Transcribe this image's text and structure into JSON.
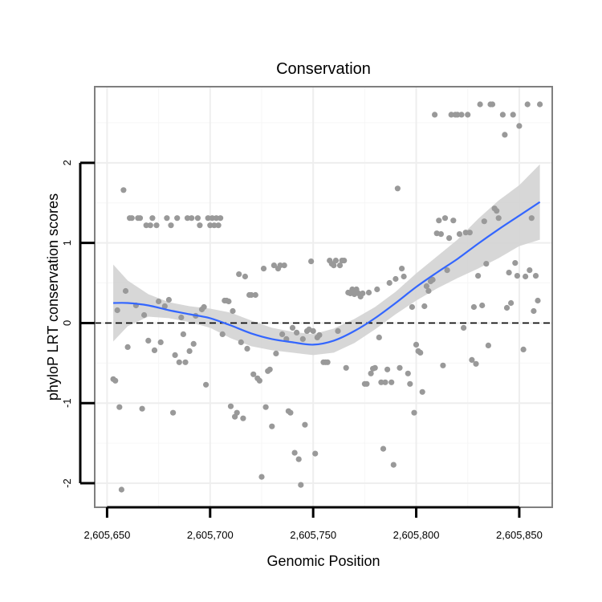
{
  "chart_data": {
    "type": "scatter",
    "title": "Conservation",
    "xlabel": "Genomic Position",
    "ylabel": "phyloP LRT conservation scores",
    "xlim": [
      2605644,
      2605866
    ],
    "ylim": [
      -2.3,
      2.95
    ],
    "x_ticks": [
      2605650,
      2605700,
      2605750,
      2605800,
      2605850
    ],
    "x_tick_labels": [
      "2,605,650",
      "2,605,700",
      "2,605,750",
      "2,605,800",
      "2,605,850"
    ],
    "y_ticks": [
      -2,
      -1,
      0,
      1,
      2
    ],
    "y_tick_labels": [
      "-2",
      "-1",
      "0",
      "1",
      "2"
    ],
    "grid": true,
    "reference_line": {
      "y": 0,
      "style": "dashed",
      "color": "#000000"
    },
    "colors": {
      "points": "#999999",
      "smooth_line": "#3366ff",
      "confidence_band": "#d3d3d3",
      "panel_border": "#7f7f7f"
    },
    "points": [
      [
        2605653,
        -0.7
      ],
      [
        2605654,
        -0.72
      ],
      [
        2605655,
        0.16
      ],
      [
        2605656,
        -1.05
      ],
      [
        2605657,
        -2.08
      ],
      [
        2605658,
        1.66
      ],
      [
        2605659,
        0.4
      ],
      [
        2605660,
        -0.3
      ],
      [
        2605661,
        1.31
      ],
      [
        2605662,
        1.31
      ],
      [
        2605664,
        0.22
      ],
      [
        2605665,
        1.31
      ],
      [
        2605666,
        1.31
      ],
      [
        2605667,
        -1.07
      ],
      [
        2605668,
        0.1
      ],
      [
        2605669,
        1.22
      ],
      [
        2605670,
        -0.22
      ],
      [
        2605671,
        1.22
      ],
      [
        2605672,
        1.31
      ],
      [
        2605673,
        -0.34
      ],
      [
        2605674,
        1.22
      ],
      [
        2605675,
        0.27
      ],
      [
        2605676,
        -0.24
      ],
      [
        2605678,
        0.21
      ],
      [
        2605679,
        1.31
      ],
      [
        2605680,
        0.29
      ],
      [
        2605681,
        1.22
      ],
      [
        2605682,
        -1.12
      ],
      [
        2605683,
        -0.4
      ],
      [
        2605684,
        1.31
      ],
      [
        2605685,
        -0.49
      ],
      [
        2605686,
        0.07
      ],
      [
        2605687,
        -0.14
      ],
      [
        2605688,
        -0.49
      ],
      [
        2605689,
        1.31
      ],
      [
        2605690,
        -0.35
      ],
      [
        2605691,
        1.31
      ],
      [
        2605692,
        -0.26
      ],
      [
        2605693,
        0.09
      ],
      [
        2605694,
        1.31
      ],
      [
        2605695,
        1.22
      ],
      [
        2605696,
        0.17
      ],
      [
        2605697,
        0.2
      ],
      [
        2605698,
        -0.77
      ],
      [
        2605699,
        1.31
      ],
      [
        2605700,
        1.22
      ],
      [
        2605701,
        1.31
      ],
      [
        2605702,
        1.22
      ],
      [
        2605703,
        1.31
      ],
      [
        2605704,
        1.22
      ],
      [
        2605705,
        1.31
      ],
      [
        2605706,
        -0.14
      ],
      [
        2605707,
        0.28
      ],
      [
        2605708,
        0.28
      ],
      [
        2605709,
        0.27
      ],
      [
        2605710,
        -1.04
      ],
      [
        2605711,
        0.15
      ],
      [
        2605712,
        -1.17
      ],
      [
        2605713,
        -1.12
      ],
      [
        2605714,
        0.61
      ],
      [
        2605715,
        -0.24
      ],
      [
        2605716,
        -1.19
      ],
      [
        2605717,
        0.58
      ],
      [
        2605718,
        -0.32
      ],
      [
        2605719,
        0.35
      ],
      [
        2605720,
        0.35
      ],
      [
        2605721,
        -0.64
      ],
      [
        2605722,
        0.35
      ],
      [
        2605723,
        -0.69
      ],
      [
        2605724,
        -0.72
      ],
      [
        2605725,
        -1.92
      ],
      [
        2605726,
        0.68
      ],
      [
        2605727,
        -1.05
      ],
      [
        2605728,
        -0.6
      ],
      [
        2605729,
        -0.58
      ],
      [
        2605730,
        -1.29
      ],
      [
        2605731,
        0.72
      ],
      [
        2605732,
        -0.38
      ],
      [
        2605733,
        0.68
      ],
      [
        2605734,
        0.72
      ],
      [
        2605735,
        -0.14
      ],
      [
        2605736,
        0.72
      ],
      [
        2605737,
        -0.2
      ],
      [
        2605738,
        -1.1
      ],
      [
        2605739,
        -1.12
      ],
      [
        2605740,
        -0.06
      ],
      [
        2605741,
        -1.62
      ],
      [
        2605742,
        -0.12
      ],
      [
        2605743,
        -1.7
      ],
      [
        2605744,
        -2.02
      ],
      [
        2605745,
        -0.2
      ],
      [
        2605746,
        -1.27
      ],
      [
        2605747,
        -0.1
      ],
      [
        2605748,
        -0.08
      ],
      [
        2605749,
        0.77
      ],
      [
        2605750,
        -0.1
      ],
      [
        2605751,
        -1.63
      ],
      [
        2605752,
        -0.18
      ],
      [
        2605753,
        -0.15
      ],
      [
        2605755,
        -0.49
      ],
      [
        2605756,
        -0.49
      ],
      [
        2605757,
        -0.49
      ],
      [
        2605758,
        0.78
      ],
      [
        2605759,
        0.74
      ],
      [
        2605760,
        0.72
      ],
      [
        2605761,
        0.78
      ],
      [
        2605762,
        -0.1
      ],
      [
        2605763,
        0.72
      ],
      [
        2605764,
        0.78
      ],
      [
        2605765,
        0.78
      ],
      [
        2605766,
        -0.56
      ],
      [
        2605767,
        0.38
      ],
      [
        2605768,
        0.37
      ],
      [
        2605769,
        0.42
      ],
      [
        2605770,
        0.36
      ],
      [
        2605771,
        0.42
      ],
      [
        2605772,
        0.37
      ],
      [
        2605773,
        0.33
      ],
      [
        2605774,
        0.37
      ],
      [
        2605775,
        -0.76
      ],
      [
        2605776,
        -0.76
      ],
      [
        2605777,
        0.38
      ],
      [
        2605778,
        -0.63
      ],
      [
        2605779,
        -0.57
      ],
      [
        2605780,
        -0.56
      ],
      [
        2605781,
        0.42
      ],
      [
        2605782,
        -0.18
      ],
      [
        2605783,
        -0.74
      ],
      [
        2605784,
        -1.57
      ],
      [
        2605785,
        -0.74
      ],
      [
        2605786,
        -0.58
      ],
      [
        2605787,
        0.5
      ],
      [
        2605788,
        -0.74
      ],
      [
        2605789,
        -1.77
      ],
      [
        2605790,
        0.55
      ],
      [
        2605791,
        1.68
      ],
      [
        2605792,
        -0.56
      ],
      [
        2605793,
        0.68
      ],
      [
        2605794,
        0.58
      ],
      [
        2605796,
        -0.63
      ],
      [
        2605797,
        -0.76
      ],
      [
        2605798,
        0.2
      ],
      [
        2605799,
        -1.12
      ],
      [
        2605800,
        -0.27
      ],
      [
        2605801,
        -0.35
      ],
      [
        2605802,
        -0.37
      ],
      [
        2605803,
        -0.86
      ],
      [
        2605804,
        0.21
      ],
      [
        2605805,
        0.46
      ],
      [
        2605806,
        0.4
      ],
      [
        2605807,
        0.52
      ],
      [
        2605808,
        0.54
      ],
      [
        2605809,
        2.6
      ],
      [
        2605810,
        1.12
      ],
      [
        2605811,
        1.28
      ],
      [
        2605812,
        1.11
      ],
      [
        2605813,
        -0.53
      ],
      [
        2605814,
        1.31
      ],
      [
        2605815,
        0.66
      ],
      [
        2605816,
        1.06
      ],
      [
        2605817,
        2.6
      ],
      [
        2605818,
        1.28
      ],
      [
        2605819,
        2.6
      ],
      [
        2605820,
        2.6
      ],
      [
        2605821,
        1.11
      ],
      [
        2605822,
        2.6
      ],
      [
        2605823,
        -0.06
      ],
      [
        2605824,
        1.13
      ],
      [
        2605825,
        2.6
      ],
      [
        2605826,
        1.13
      ],
      [
        2605827,
        -0.46
      ],
      [
        2605828,
        0.2
      ],
      [
        2605829,
        -0.51
      ],
      [
        2605830,
        0.59
      ],
      [
        2605831,
        2.73
      ],
      [
        2605832,
        0.22
      ],
      [
        2605833,
        1.27
      ],
      [
        2605834,
        0.74
      ],
      [
        2605835,
        -0.28
      ],
      [
        2605836,
        2.73
      ],
      [
        2605837,
        2.73
      ],
      [
        2605838,
        1.43
      ],
      [
        2605839,
        1.4
      ],
      [
        2605840,
        1.31
      ],
      [
        2605842,
        2.6
      ],
      [
        2605843,
        2.35
      ],
      [
        2605844,
        0.19
      ],
      [
        2605845,
        0.63
      ],
      [
        2605846,
        0.25
      ],
      [
        2605847,
        2.6
      ],
      [
        2605848,
        0.75
      ],
      [
        2605849,
        0.59
      ],
      [
        2605850,
        2.46
      ],
      [
        2605852,
        -0.33
      ],
      [
        2605853,
        0.58
      ],
      [
        2605854,
        2.73
      ],
      [
        2605855,
        0.66
      ],
      [
        2605856,
        1.31
      ],
      [
        2605857,
        0.15
      ],
      [
        2605858,
        0.59
      ],
      [
        2605859,
        0.28
      ],
      [
        2605860,
        2.73
      ]
    ],
    "smooth": {
      "x": [
        2605653,
        2605660,
        2605670,
        2605680,
        2605690,
        2605700,
        2605710,
        2605720,
        2605730,
        2605740,
        2605750,
        2605760,
        2605770,
        2605780,
        2605790,
        2605800,
        2605810,
        2605820,
        2605830,
        2605840,
        2605850,
        2605860
      ],
      "y": [
        0.25,
        0.25,
        0.22,
        0.16,
        0.11,
        0.06,
        -0.03,
        -0.13,
        -0.2,
        -0.24,
        -0.27,
        -0.22,
        -0.1,
        0.06,
        0.25,
        0.45,
        0.63,
        0.8,
        0.99,
        1.17,
        1.34,
        1.51
      ],
      "lower": [
        -0.23,
        -0.04,
        0.08,
        0.06,
        0.01,
        -0.06,
        -0.19,
        -0.29,
        -0.34,
        -0.37,
        -0.4,
        -0.37,
        -0.25,
        -0.08,
        0.11,
        0.28,
        0.43,
        0.56,
        0.68,
        0.81,
        0.96,
        1.04
      ],
      "upper": [
        0.73,
        0.53,
        0.36,
        0.26,
        0.21,
        0.18,
        0.13,
        0.03,
        -0.06,
        -0.11,
        -0.14,
        -0.07,
        0.05,
        0.2,
        0.39,
        0.62,
        0.83,
        1.04,
        1.3,
        1.53,
        1.72,
        1.98
      ]
    }
  }
}
